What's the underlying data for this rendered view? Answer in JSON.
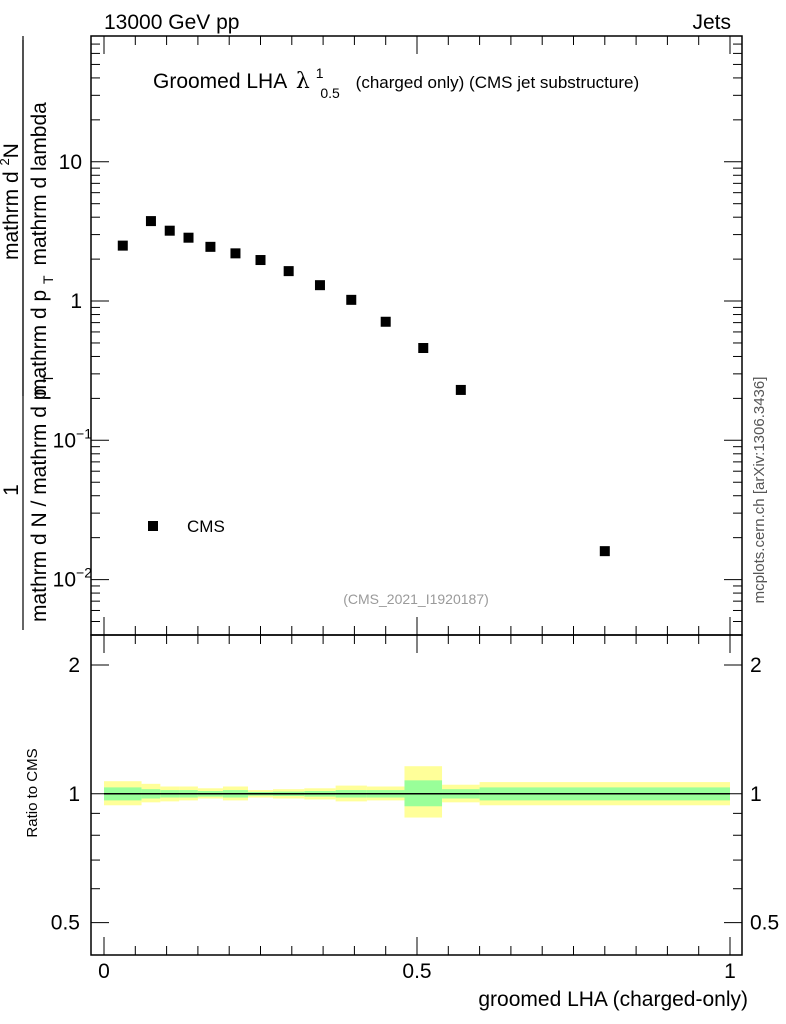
{
  "header": {
    "left_label": "13000 GeV pp",
    "right_label": "Jets"
  },
  "side_label": "mcplots.cern.ch [arXiv:1306.3436]",
  "chart_data": [
    {
      "type": "scatter",
      "title_main": "Groomed LHA",
      "title_symbol": "λ",
      "title_sup": "1",
      "title_sub": "0.5",
      "title_rest": "(charged only) (CMS jet substructure)",
      "ylabel": {
        "prefix": "1",
        "denominator": "mathrm d N / mathrm d p",
        "denominator_sub": "T",
        "numerator": "mathrm d",
        "numerator_sup": "2",
        "numerator_end": "N",
        "fraction_denominator": "mathrm d p",
        "fraction_denominator_sub": "T",
        "fraction_denominator_end": "mathrm d lambda",
        "full": "1 / (mathrm d N / mathrm d p_T) · mathrm d^2N / (mathrm d p_T mathrm d lambda)"
      },
      "yscale": "log",
      "ylim": [
        0.004,
        80
      ],
      "xlim": [
        -0.02,
        1.02
      ],
      "ytick_labels": [
        {
          "value": 10,
          "base": "10",
          "exp": ""
        },
        {
          "value": 1,
          "base": "1",
          "exp": ""
        },
        {
          "value": 0.1,
          "base": "10",
          "exp": "−1"
        },
        {
          "value": 0.01,
          "base": "10",
          "exp": "−2"
        }
      ],
      "series": [
        {
          "name": "CMS",
          "marker": "square",
          "color": "#000000",
          "x": [
            0.03,
            0.075,
            0.105,
            0.135,
            0.17,
            0.21,
            0.25,
            0.295,
            0.345,
            0.395,
            0.45,
            0.51,
            0.57,
            0.8
          ],
          "y": [
            2.5,
            3.75,
            3.2,
            2.85,
            2.45,
            2.2,
            1.97,
            1.64,
            1.3,
            1.02,
            0.71,
            0.46,
            0.23,
            0.016
          ]
        }
      ],
      "legend": {
        "position": "lower-left",
        "entries": [
          "CMS"
        ]
      },
      "annotation": "(CMS_2021_I1920187)",
      "annotation_color": "#9a9a9a"
    },
    {
      "type": "area",
      "ylabel": "Ratio to CMS",
      "xlabel": "groomed LHA (charged-only)",
      "yscale": "log",
      "ylim": [
        0.42,
        2.35
      ],
      "xlim": [
        -0.02,
        1.02
      ],
      "ytick_labels": [
        {
          "value": 2,
          "label": "2"
        },
        {
          "value": 1,
          "label": "1"
        },
        {
          "value": 0.5,
          "label": "0.5"
        }
      ],
      "xtick_labels": [
        {
          "value": 0,
          "label": "0"
        },
        {
          "value": 0.5,
          "label": "0.5"
        },
        {
          "value": 1,
          "label": "1"
        }
      ],
      "reference_line": 1,
      "band_colors": {
        "outer": "#ffff99",
        "inner": "#99ff99",
        "line": "#000000"
      },
      "bins": [
        {
          "x0": 0.0,
          "x1": 0.06,
          "outer": [
            0.94,
            1.07
          ],
          "inner": [
            0.965,
            1.035
          ]
        },
        {
          "x0": 0.06,
          "x1": 0.09,
          "outer": [
            0.955,
            1.055
          ],
          "inner": [
            0.975,
            1.025
          ]
        },
        {
          "x0": 0.09,
          "x1": 0.12,
          "outer": [
            0.96,
            1.04
          ],
          "inner": [
            0.98,
            1.02
          ]
        },
        {
          "x0": 0.12,
          "x1": 0.15,
          "outer": [
            0.965,
            1.04
          ],
          "inner": [
            0.98,
            1.02
          ]
        },
        {
          "x0": 0.15,
          "x1": 0.19,
          "outer": [
            0.975,
            1.03
          ],
          "inner": [
            0.985,
            1.015
          ]
        },
        {
          "x0": 0.19,
          "x1": 0.23,
          "outer": [
            0.965,
            1.04
          ],
          "inner": [
            0.98,
            1.02
          ]
        },
        {
          "x0": 0.23,
          "x1": 0.27,
          "outer": [
            0.98,
            1.02
          ],
          "inner": [
            0.99,
            1.01
          ]
        },
        {
          "x0": 0.27,
          "x1": 0.32,
          "outer": [
            0.975,
            1.025
          ],
          "inner": [
            0.988,
            1.012
          ]
        },
        {
          "x0": 0.32,
          "x1": 0.37,
          "outer": [
            0.97,
            1.03
          ],
          "inner": [
            0.985,
            1.015
          ]
        },
        {
          "x0": 0.37,
          "x1": 0.42,
          "outer": [
            0.96,
            1.045
          ],
          "inner": [
            0.98,
            1.02
          ]
        },
        {
          "x0": 0.42,
          "x1": 0.48,
          "outer": [
            0.965,
            1.04
          ],
          "inner": [
            0.98,
            1.02
          ]
        },
        {
          "x0": 0.48,
          "x1": 0.54,
          "outer": [
            0.88,
            1.16
          ],
          "inner": [
            0.935,
            1.075
          ]
        },
        {
          "x0": 0.54,
          "x1": 0.6,
          "outer": [
            0.955,
            1.05
          ],
          "inner": [
            0.975,
            1.025
          ]
        },
        {
          "x0": 0.6,
          "x1": 1.0,
          "outer": [
            0.94,
            1.065
          ],
          "inner": [
            0.965,
            1.035
          ]
        }
      ]
    }
  ]
}
